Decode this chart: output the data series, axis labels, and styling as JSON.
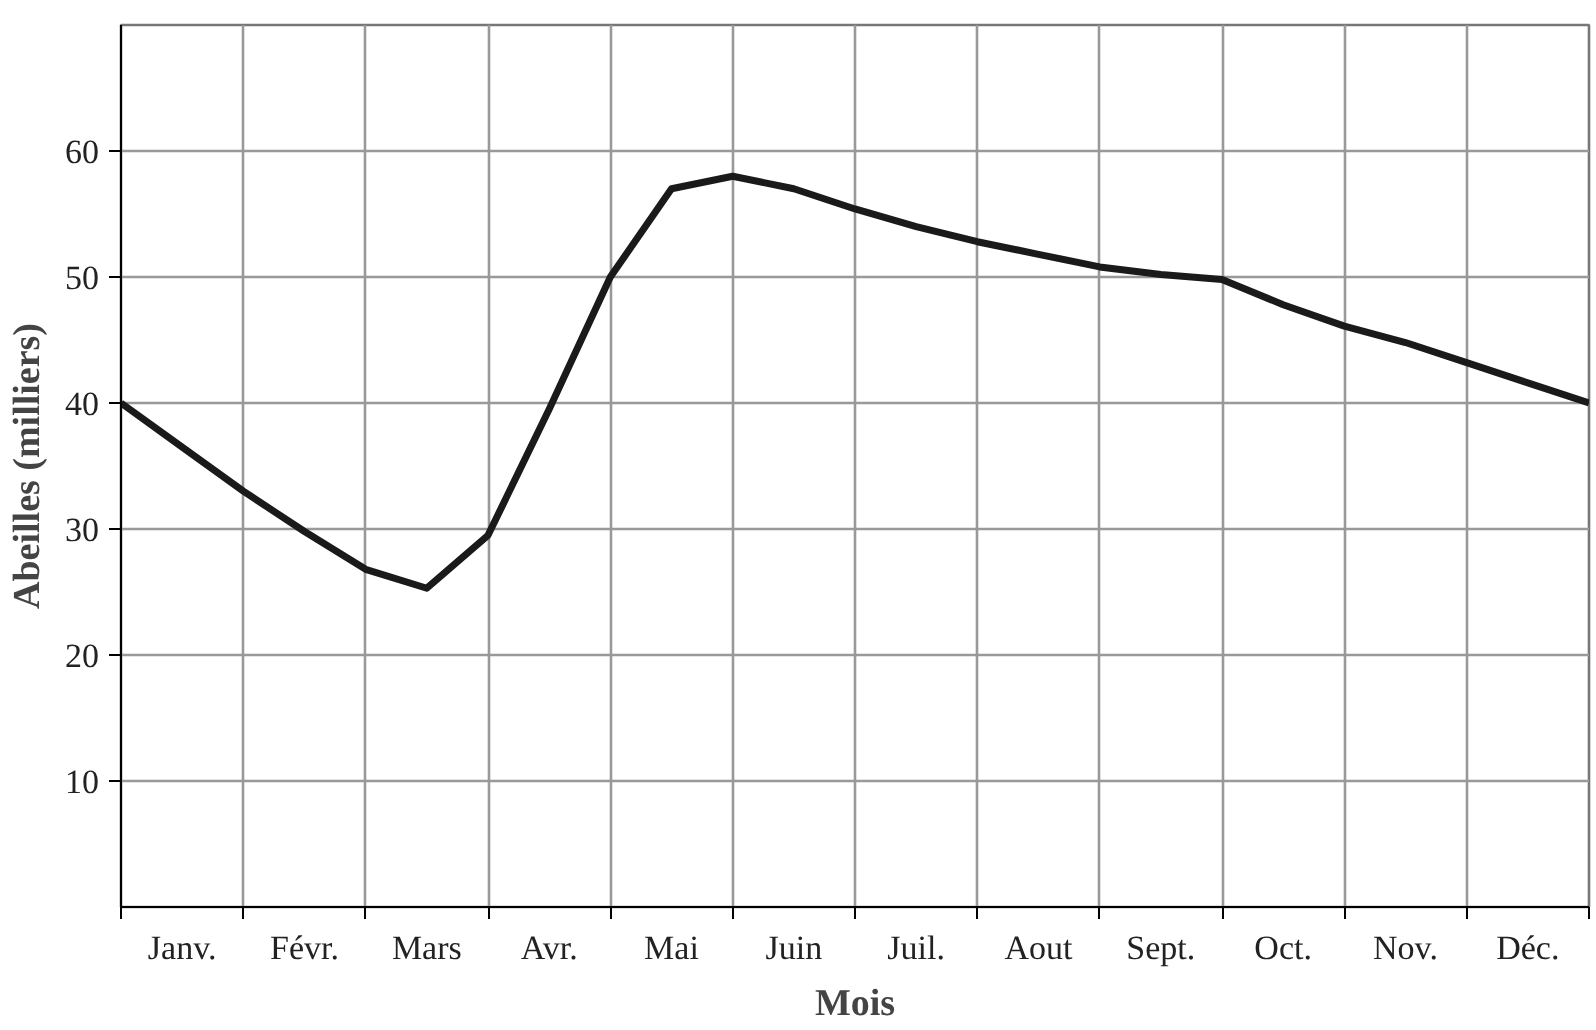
{
  "chart_data": {
    "type": "line",
    "xlabel": "Mois",
    "ylabel": "Abeilles (milliers)",
    "categories": [
      null,
      "Janv.",
      null,
      "Févr.",
      null,
      "Mars",
      null,
      "Avr.",
      null,
      "Mai",
      null,
      "Juin",
      null,
      "Juil.",
      null,
      "Aout",
      null,
      "Sept.",
      null,
      "Oct.",
      null,
      "Nov.",
      null,
      "Déc.",
      null
    ],
    "ylim": [
      0,
      70
    ],
    "yticks": [
      10,
      20,
      30,
      40,
      50,
      60
    ],
    "grid": true,
    "marker": "none",
    "line_style": "solid",
    "series": [
      {
        "color": "#1a1a1a",
        "values": [
          40,
          36.5,
          33,
          29.8,
          26.8,
          25.3,
          29.5,
          39.5,
          50,
          57,
          58,
          57,
          55.4,
          54,
          52.8,
          51.8,
          50.8,
          50.2,
          49.8,
          47.8,
          46.1,
          44.8,
          43.2,
          41.6,
          40
        ]
      }
    ]
  }
}
